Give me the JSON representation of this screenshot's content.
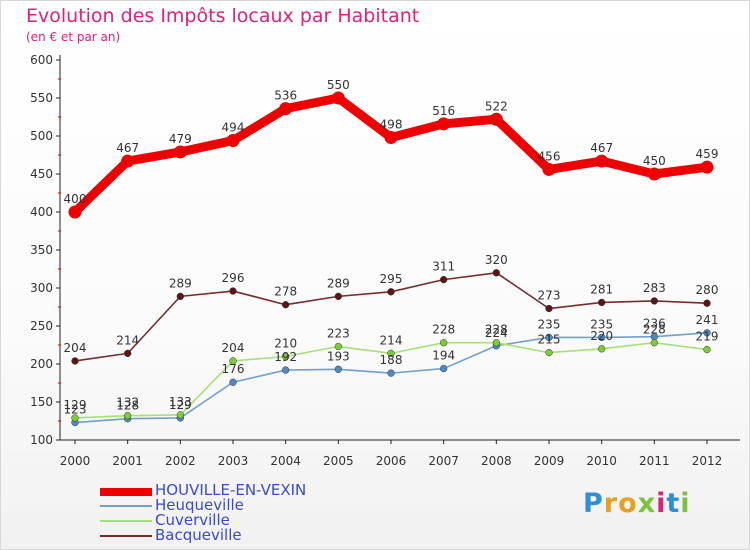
{
  "chart_data": {
    "type": "line",
    "title": "Evolution des Impôts locaux par Habitant",
    "subtitle": "(en € et par an)",
    "x": [
      "2000",
      "2001",
      "2002",
      "2003",
      "2004",
      "2005",
      "2006",
      "2007",
      "2008",
      "2009",
      "2010",
      "2011",
      "2012"
    ],
    "ylim": [
      100,
      600
    ],
    "yticks": [
      100,
      150,
      200,
      250,
      300,
      350,
      400,
      450,
      500,
      550,
      600
    ],
    "grid": false,
    "legend_position": "bottom-left",
    "series": [
      {
        "name": "HOUVILLE-EN-VEXIN",
        "color": "#ee0000",
        "marker": "#ee0000",
        "width": "thick",
        "values": [
          400,
          467,
          479,
          494,
          536,
          550,
          498,
          516,
          522,
          456,
          467,
          450,
          459
        ]
      },
      {
        "name": "Heuqueville",
        "color": "#6fa0cf",
        "marker": "#4f89c2",
        "width": "thin",
        "values": [
          123,
          128,
          129,
          176,
          192,
          193,
          188,
          194,
          224,
          235,
          235,
          236,
          241
        ]
      },
      {
        "name": "Cuverville",
        "color": "#a6e07a",
        "marker": "#7ccc3a",
        "width": "thin",
        "values": [
          129,
          132,
          133,
          204,
          210,
          223,
          214,
          228,
          228,
          215,
          220,
          228,
          219
        ]
      },
      {
        "name": "Bacqueville",
        "color": "#7a2a2a",
        "marker": "#5a1616",
        "width": "thin",
        "values": [
          204,
          214,
          289,
          296,
          278,
          289,
          295,
          311,
          320,
          273,
          281,
          283,
          280
        ]
      }
    ]
  },
  "logo": {
    "text": "Proxiti"
  }
}
